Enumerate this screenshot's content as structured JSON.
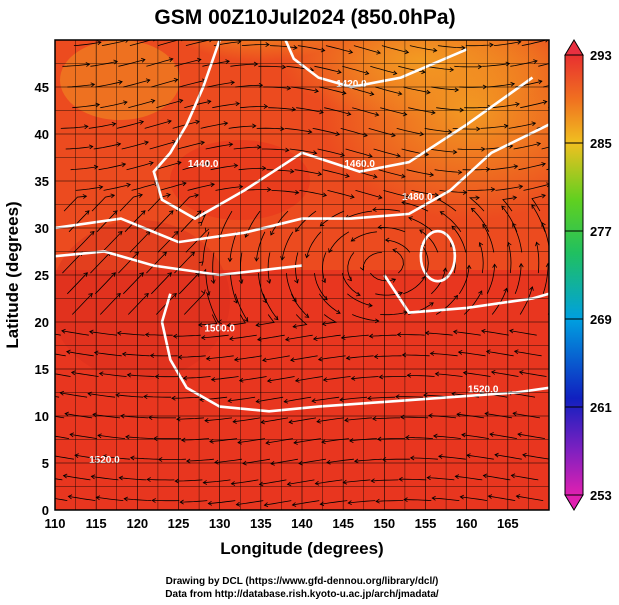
{
  "chart_data": {
    "type": "heatmap",
    "title": "GSM 00Z10Jul2024 (850.0hPa)",
    "xlabel": "Longitude (degrees)",
    "ylabel": "Latitude  (degrees)",
    "xlim": [
      110,
      170
    ],
    "ylim": [
      0,
      50
    ],
    "xticks": [
      "110",
      "115",
      "120",
      "125",
      "130",
      "135",
      "140",
      "145",
      "150",
      "155",
      "160",
      "165"
    ],
    "yticks": [
      "0",
      "5",
      "10",
      "15",
      "20",
      "25",
      "30",
      "35",
      "40",
      "45"
    ],
    "grid": true,
    "colorbar": {
      "range": [
        253,
        293
      ],
      "ticks": [
        "253",
        "261",
        "269",
        "277",
        "285",
        "293"
      ],
      "placement": "right"
    },
    "contours": [
      {
        "label": "1420.0",
        "lat": 45
      },
      {
        "label": "1440.0",
        "lat": 36
      },
      {
        "label": "1460.0",
        "lat": 37
      },
      {
        "label": "1480.0",
        "lat": 32
      },
      {
        "label": "1500.0",
        "lat": 27
      },
      {
        "label": "1520.0",
        "lat": 13
      },
      {
        "label": "1520.0",
        "lat": 18
      }
    ],
    "colors": {
      "warm": "#e8321e",
      "hot": "#f5a020",
      "cool": "#4fd21a",
      "contour": "#ffffff",
      "streamline": "#000000"
    }
  },
  "credits": {
    "line1": "Drawing by DCL (https://www.gfd-dennou.org/library/dcl/)",
    "line2": "Data from http://database.rish.kyoto-u.ac.jp/arch/jmadata/"
  }
}
